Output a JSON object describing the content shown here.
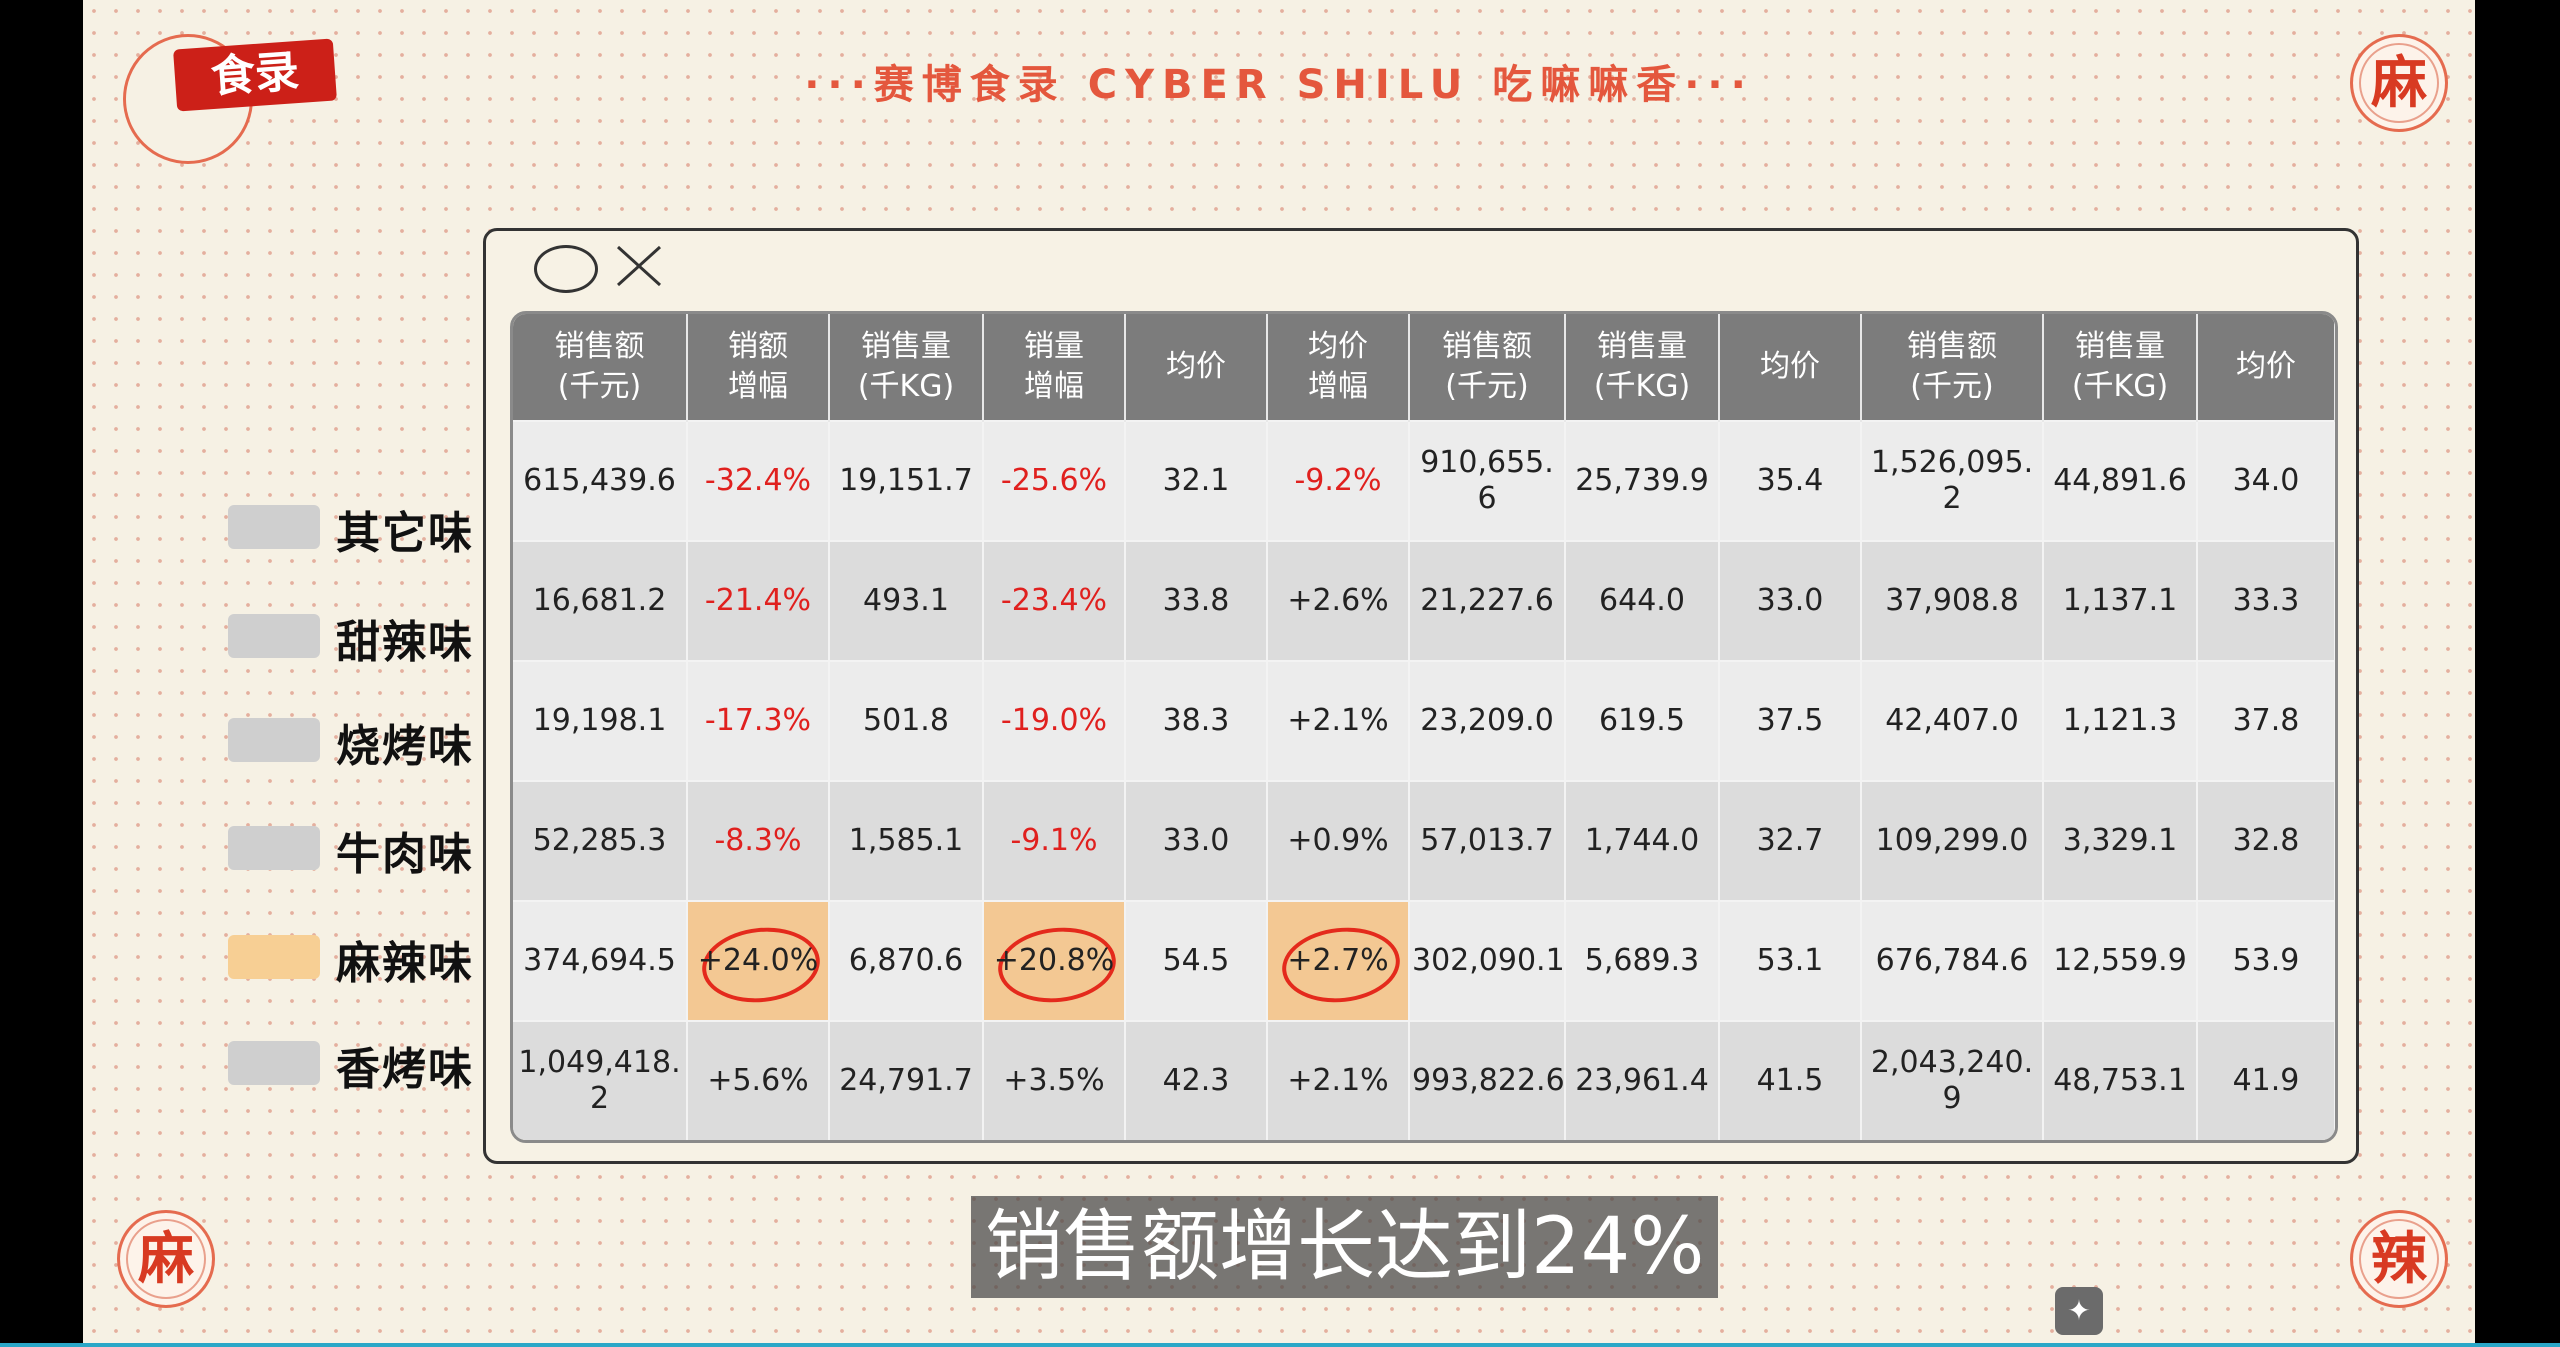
{
  "header": {
    "title": "···赛博食录 CYBER SHILU 吃嘛嘛香···",
    "logo_text": "食录"
  },
  "seals": {
    "top_right": "麻",
    "bottom_left": "麻",
    "bottom_right": "辣"
  },
  "legend": [
    {
      "label": "其它味",
      "highlight": false
    },
    {
      "label": "甜辣味",
      "highlight": false
    },
    {
      "label": "烧烤味",
      "highlight": false
    },
    {
      "label": "牛肉味",
      "highlight": false
    },
    {
      "label": "麻辣味",
      "highlight": true
    },
    {
      "label": "香烤味",
      "highlight": false
    }
  ],
  "table": {
    "headers": [
      "销售额\n(千元)",
      "销额\n增幅",
      "销售量\n(千KG)",
      "销量\n增幅",
      "均价",
      "均价\n增幅",
      "销售额\n(千元)",
      "销售量\n(千KG)",
      "均价",
      "销售额\n(千元)",
      "销售量\n(千KG)",
      "均价"
    ],
    "rows": [
      [
        "615,439.6",
        "-32.4%",
        "19,151.7",
        "-25.6%",
        "32.1",
        "-9.2%",
        "910,655.\n6",
        "25,739.9",
        "35.4",
        "1,526,095.\n2",
        "44,891.6",
        "34.0"
      ],
      [
        "16,681.2",
        "-21.4%",
        "493.1",
        "-23.4%",
        "33.8",
        "+2.6%",
        "21,227.6",
        "644.0",
        "33.0",
        "37,908.8",
        "1,137.1",
        "33.3"
      ],
      [
        "19,198.1",
        "-17.3%",
        "501.8",
        "-19.0%",
        "38.3",
        "+2.1%",
        "23,209.0",
        "619.5",
        "37.5",
        "42,407.0",
        "1,121.3",
        "37.8"
      ],
      [
        "52,285.3",
        "-8.3%",
        "1,585.1",
        "-9.1%",
        "33.0",
        "+0.9%",
        "57,013.7",
        "1,744.0",
        "32.7",
        "109,299.0",
        "3,329.1",
        "32.8"
      ],
      [
        "374,694.5",
        "+24.0%",
        "6,870.6",
        "+20.8%",
        "54.5",
        "+2.7%",
        "302,090.1",
        "5,689.3",
        "53.1",
        "676,784.6",
        "12,559.9",
        "53.9"
      ],
      [
        "1,049,418.\n2",
        "+5.6%",
        "24,791.7",
        "+3.5%",
        "42.3",
        "+2.1%",
        "993,822.6",
        "23,961.4",
        "41.5",
        "2,043,240.\n9",
        "48,753.1",
        "41.9"
      ]
    ],
    "circled_cells": [
      [
        4,
        1
      ],
      [
        4,
        3
      ],
      [
        4,
        5
      ]
    ]
  },
  "subtitle": "销售额增长达到24%",
  "colors": {
    "accent": "#e4573d",
    "negative": "#e0201e",
    "highlight": "#f3c893",
    "header_bg": "#7c7c7c"
  },
  "icons": [
    "window-circle-icon",
    "close-icon",
    "magic-wand-icon"
  ]
}
